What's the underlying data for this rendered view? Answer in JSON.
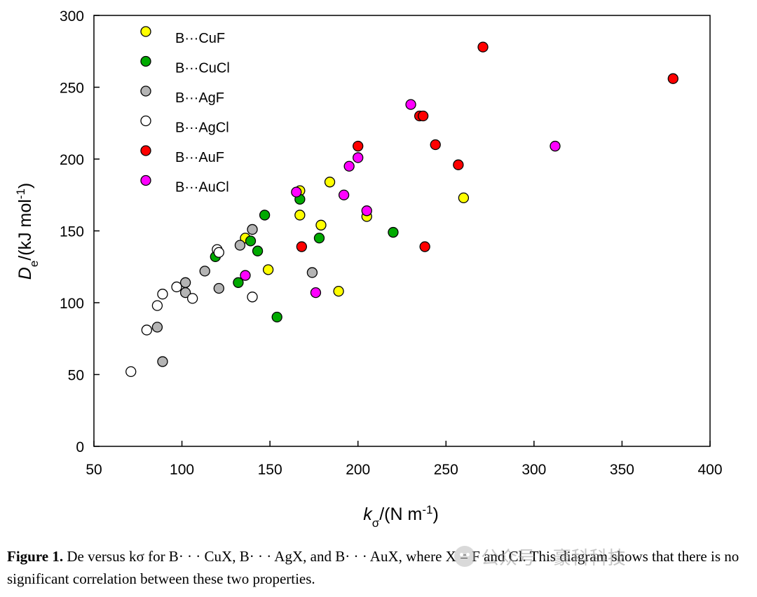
{
  "chart_data": {
    "type": "scatter",
    "xlabel": {
      "main": "k",
      "sub": "σ",
      "rest": "/(N m",
      "sup": "-1",
      "close": ")"
    },
    "ylabel": {
      "main": "D",
      "sub": "e",
      "rest": "/(kJ mol",
      "sup": "-1",
      "close": ")"
    },
    "xlim": [
      50,
      400
    ],
    "ylim": [
      0,
      300
    ],
    "xticks": [
      50,
      100,
      150,
      200,
      250,
      300,
      350,
      400
    ],
    "yticks": [
      0,
      50,
      100,
      150,
      200,
      250,
      300
    ],
    "grid": false,
    "legend_position": "top-left",
    "series": [
      {
        "name": "B···CuF",
        "color": "#ffff00",
        "points": [
          [
            136,
            145
          ],
          [
            167,
            178
          ],
          [
            167,
            161
          ],
          [
            179,
            154
          ],
          [
            149,
            123
          ],
          [
            184,
            184
          ],
          [
            189,
            108
          ],
          [
            205,
            160
          ],
          [
            260,
            173
          ]
        ]
      },
      {
        "name": "B···CuCl",
        "color": "#00aa00",
        "points": [
          [
            119,
            132
          ],
          [
            132,
            114
          ],
          [
            139,
            143
          ],
          [
            143,
            136
          ],
          [
            147,
            161
          ],
          [
            154,
            90
          ],
          [
            167,
            172
          ],
          [
            178,
            145
          ],
          [
            220,
            149
          ]
        ]
      },
      {
        "name": "B···AgF",
        "color": "#b4b4b4",
        "points": [
          [
            86,
            83
          ],
          [
            89,
            59
          ],
          [
            102,
            107
          ],
          [
            102,
            114
          ],
          [
            113,
            122
          ],
          [
            121,
            110
          ],
          [
            133,
            140
          ],
          [
            140,
            151
          ],
          [
            174,
            121
          ]
        ]
      },
      {
        "name": "B···AgCl",
        "color": "#ffffff",
        "points": [
          [
            71,
            52
          ],
          [
            80,
            81
          ],
          [
            86,
            98
          ],
          [
            89,
            106
          ],
          [
            97,
            111
          ],
          [
            106,
            103
          ],
          [
            120,
            137
          ],
          [
            121,
            135
          ],
          [
            140,
            104
          ]
        ]
      },
      {
        "name": "B···AuF",
        "color": "#ff0000",
        "points": [
          [
            168,
            139
          ],
          [
            200,
            209
          ],
          [
            235,
            230
          ],
          [
            237,
            230
          ],
          [
            238,
            139
          ],
          [
            244,
            210
          ],
          [
            257,
            196
          ],
          [
            271,
            278
          ],
          [
            379,
            256
          ]
        ]
      },
      {
        "name": "B···AuCl",
        "color": "#ff00ff",
        "points": [
          [
            136,
            119
          ],
          [
            165,
            177
          ],
          [
            176,
            107
          ],
          [
            192,
            175
          ],
          [
            195,
            195
          ],
          [
            200,
            201
          ],
          [
            205,
            164
          ],
          [
            230,
            238
          ],
          [
            312,
            209
          ]
        ]
      }
    ]
  },
  "caption": {
    "label": "Figure 1.",
    "text": " De versus kσ for B· · · CuX, B· · · AgX, and B· · · AuX, where X = F and Cl. This diagram shows that there is no significant correlation between these two properties."
  },
  "watermark": {
    "icon": "wechat-icon",
    "text": "公众号 · 豪科科技"
  }
}
